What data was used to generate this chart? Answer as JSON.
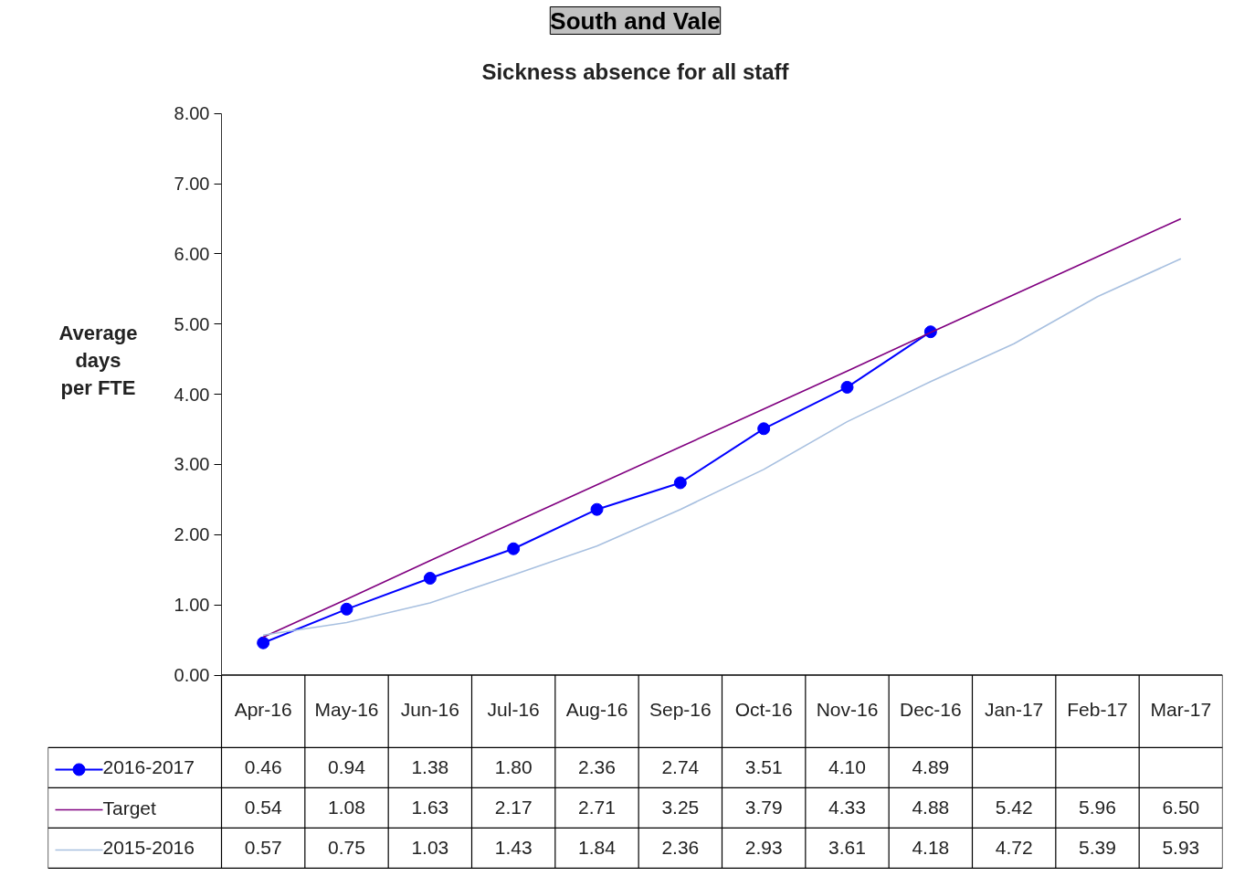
{
  "chart_data": {
    "type": "line",
    "title": "South and Vale",
    "subtitle": "Sickness absence for all staff",
    "ylabel": "Average days per FTE",
    "categories": [
      "Apr-16",
      "May-16",
      "Jun-16",
      "Jul-16",
      "Aug-16",
      "Sep-16",
      "Oct-16",
      "Nov-16",
      "Dec-16",
      "Jan-17",
      "Feb-17",
      "Mar-17"
    ],
    "series": [
      {
        "name": "2016-2017",
        "color": "#0000ff",
        "marker": "circle",
        "values": [
          0.46,
          0.94,
          1.38,
          1.8,
          2.36,
          2.74,
          3.51,
          4.1,
          4.89,
          null,
          null,
          null
        ],
        "value_labels": [
          "0.46",
          "0.94",
          "1.38",
          "1.80",
          "2.36",
          "2.74",
          "3.51",
          "4.10",
          "4.89",
          null,
          null,
          null
        ]
      },
      {
        "name": "Target",
        "color": "#800080",
        "marker": "none",
        "values": [
          0.54,
          1.08,
          1.63,
          2.17,
          2.71,
          3.25,
          3.79,
          4.33,
          4.88,
          5.42,
          5.96,
          6.5
        ],
        "value_labels": [
          "0.54",
          "1.08",
          "1.63",
          "2.17",
          "2.71",
          "3.25",
          "3.79",
          "4.33",
          "4.88",
          "5.42",
          "5.96",
          "6.50"
        ]
      },
      {
        "name": "2015-2016",
        "color": "#a8c0e0",
        "marker": "none",
        "values": [
          0.57,
          0.75,
          1.03,
          1.43,
          1.84,
          2.36,
          2.93,
          3.61,
          4.18,
          4.72,
          5.39,
          5.93
        ],
        "value_labels": [
          "0.57",
          "0.75",
          "1.03",
          "1.43",
          "1.84",
          "2.36",
          "2.93",
          "3.61",
          "4.18",
          "4.72",
          "5.39",
          "5.93"
        ]
      }
    ],
    "ylim": [
      0,
      8
    ],
    "yticks": [
      {
        "value": 0,
        "label": "0.00"
      },
      {
        "value": 1,
        "label": "1.00"
      },
      {
        "value": 2,
        "label": "2.00"
      },
      {
        "value": 3,
        "label": "3.00"
      },
      {
        "value": 4,
        "label": "4.00"
      },
      {
        "value": 5,
        "label": "5.00"
      },
      {
        "value": 6,
        "label": "6.00"
      },
      {
        "value": 7,
        "label": "7.00"
      },
      {
        "value": 8,
        "label": "8.00"
      }
    ],
    "grid": false,
    "legend": "bottom left"
  }
}
